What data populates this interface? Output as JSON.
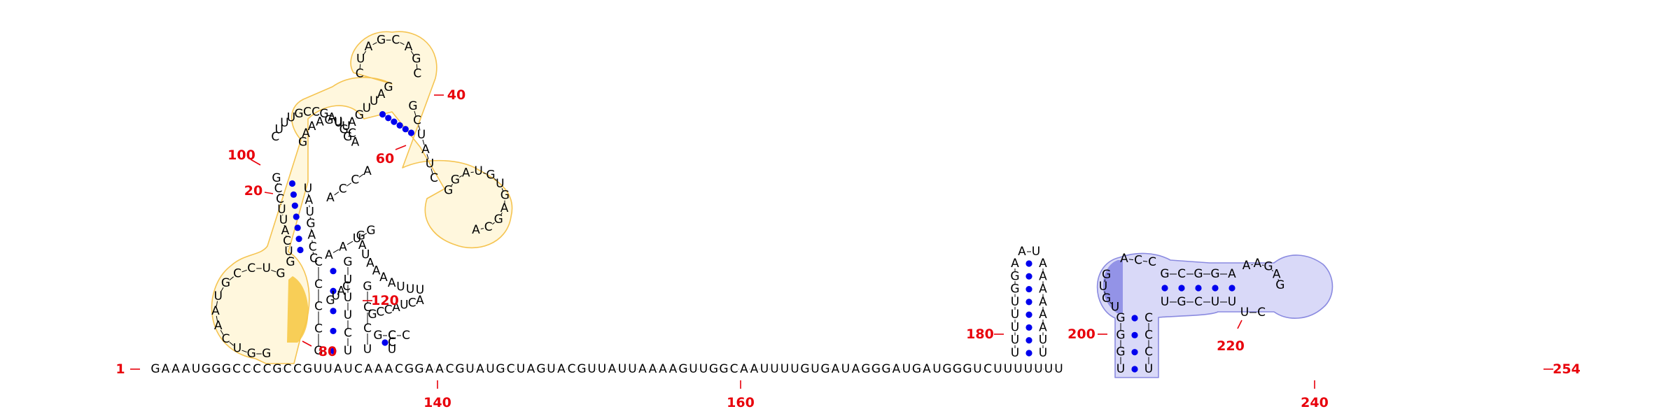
{
  "diagram": {
    "type": "rna-secondary-structure",
    "colors": {
      "nucleotide": "#000000",
      "backbone": "#000000",
      "basepair_dot": "#0000ee",
      "number_label": "#e8000b",
      "highlight_yellow_fill": "#fff7dd",
      "highlight_yellow_stroke": "#f5c451",
      "highlight_yellow_strong": "#f7c948",
      "highlight_blue_fill": "#d9d9f8",
      "highlight_blue_stroke": "#8a8ae0",
      "highlight_blue_strong": "#8f8fe6"
    },
    "base_strand_start_label": "1",
    "base_strand_end_label": "254",
    "base_strand": "GAAAUGGGCCCCGCCGUUAUCAAACGGAACGUAUGCUAGUACGUUAUUAAAAGUUGGCAAUUUUGUGAUAGGGAUGAUGGGUCUUUUUUU",
    "number_labels": [
      {
        "id": "n1",
        "text": "1"
      },
      {
        "id": "n20",
        "text": "20"
      },
      {
        "id": "n40",
        "text": "40"
      },
      {
        "id": "n60",
        "text": "60"
      },
      {
        "id": "n80",
        "text": "80"
      },
      {
        "id": "n100",
        "text": "100"
      },
      {
        "id": "n120",
        "text": "120"
      },
      {
        "id": "n140",
        "text": "140"
      },
      {
        "id": "n160",
        "text": "160"
      },
      {
        "id": "n180",
        "text": "180"
      },
      {
        "id": "n200",
        "text": "200"
      },
      {
        "id": "n220",
        "text": "220"
      },
      {
        "id": "n240",
        "text": "240"
      },
      {
        "id": "n254",
        "text": "254"
      }
    ],
    "hairpin_180": {
      "left_strand": "UUUUUGGA",
      "loop": "AU",
      "right_strand": "UUAAAAAA"
    },
    "stem_loop_200": {
      "stem_left": "UGGG",
      "stem_right": "CCCU",
      "stem2_top": "GCGGA",
      "stem2_bottom": "UGCUU",
      "loop_left": "UGUG",
      "loop_top": "ACC",
      "loop_right": "AAGAG",
      "loop_bottom": "UC"
    },
    "left_structure": {
      "domain_a_left": "GCCCC",
      "domain_a_right": "UCUUUG",
      "stem_120_top": "GCCU",
      "stem_120_bottom": "ACAA",
      "small_loop": "GCCAUCA",
      "small_stem_bottom": "GCC",
      "ext_strand_60": "UUUAAAAUAG",
      "upper_ring": "CUCGAGAUAGCUUA",
      "right_loop": "GGAUGUGAGCA",
      "top_loop": "CUAGCAGC",
      "small_ring_upper": "GAAAGUUCA",
      "left_helix": "GCCUUACUG",
      "left_helix_pair": "UAUGACC",
      "bottom_ring": "GUCCGUAACUGG",
      "upper_left_ring": "CUUUGCCGAUGG"
    }
  }
}
